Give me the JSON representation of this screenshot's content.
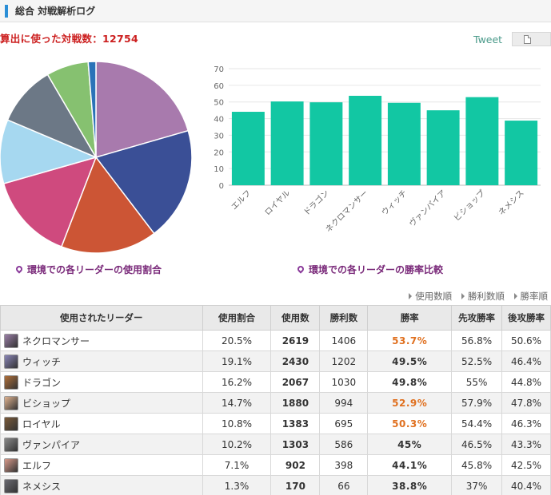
{
  "header": {
    "title": "総合 対戦解析ログ"
  },
  "summary": {
    "battle_count_text": "算出に使った対戦数：12754"
  },
  "share": {
    "tweet_label": "Tweet"
  },
  "pie": {
    "caption": "環境での各リーダーの使用割合",
    "slices": [
      {
        "name": "ネクロマンサー",
        "value": 20.5,
        "color": "#a87aad"
      },
      {
        "name": "ウィッチ",
        "value": 19.1,
        "color": "#3a4f96"
      },
      {
        "name": "ドラゴン",
        "value": 16.2,
        "color": "#cc5535"
      },
      {
        "name": "ビショップ",
        "value": 14.7,
        "color": "#cf4a7e"
      },
      {
        "name": "ロイヤル",
        "value": 10.8,
        "color": "#a6d8f0"
      },
      {
        "name": "ヴァンパイア",
        "value": 10.2,
        "color": "#6c7886"
      },
      {
        "name": "エルフ",
        "value": 7.1,
        "color": "#86c170"
      },
      {
        "name": "ネメシス",
        "value": 1.3,
        "color": "#2a73b8"
      }
    ]
  },
  "chart_data": {
    "type": "bar",
    "title": "環境での各リーダーの勝率比較",
    "categories": [
      "エルフ",
      "ロイヤル",
      "ドラゴン",
      "ネクロマンサー",
      "ウィッチ",
      "ヴァンパイア",
      "ビショップ",
      "ネメシス"
    ],
    "values": [
      44.1,
      50.3,
      49.8,
      53.7,
      49.5,
      45.0,
      52.9,
      38.8
    ],
    "yticks": [
      0,
      10,
      20,
      30,
      40,
      50,
      60,
      70
    ],
    "ylim": [
      0,
      70
    ],
    "grid": true,
    "bar_color": "#12c7a3"
  },
  "sort": {
    "by_uses": "使用数順",
    "by_wins": "勝利数順",
    "by_rate": "勝率順"
  },
  "table": {
    "headers": {
      "leader": "使用されたリーダー",
      "share": "使用割合",
      "uses": "使用数",
      "wins": "勝利数",
      "rate": "勝率",
      "first": "先攻勝率",
      "second": "後攻勝率"
    },
    "rows": [
      {
        "name": "ネクロマンサー",
        "share": "20.5%",
        "uses": "2619",
        "wins": "1406",
        "rate": "53.7%",
        "rate_high": true,
        "first": "56.8%",
        "second": "50.6%",
        "avatar_color": "#9b7fa8"
      },
      {
        "name": "ウィッチ",
        "share": "19.1%",
        "uses": "2430",
        "wins": "1202",
        "rate": "49.5%",
        "rate_high": false,
        "first": "52.5%",
        "second": "46.4%",
        "avatar_color": "#8a86b8"
      },
      {
        "name": "ドラゴン",
        "share": "16.2%",
        "uses": "2067",
        "wins": "1030",
        "rate": "49.8%",
        "rate_high": false,
        "first": "55%",
        "second": "44.8%",
        "avatar_color": "#b0703a"
      },
      {
        "name": "ビショップ",
        "share": "14.7%",
        "uses": "1880",
        "wins": "994",
        "rate": "52.9%",
        "rate_high": true,
        "first": "57.9%",
        "second": "47.8%",
        "avatar_color": "#e0b490"
      },
      {
        "name": "ロイヤル",
        "share": "10.8%",
        "uses": "1383",
        "wins": "695",
        "rate": "50.3%",
        "rate_high": true,
        "first": "54.4%",
        "second": "46.3%",
        "avatar_color": "#7a5a3a"
      },
      {
        "name": "ヴァンパイア",
        "share": "10.2%",
        "uses": "1303",
        "wins": "586",
        "rate": "45%",
        "rate_high": false,
        "first": "46.5%",
        "second": "43.3%",
        "avatar_color": "#8a8a8a"
      },
      {
        "name": "エルフ",
        "share": "7.1%",
        "uses": "902",
        "wins": "398",
        "rate": "44.1%",
        "rate_high": false,
        "first": "45.8%",
        "second": "42.5%",
        "avatar_color": "#d89a8a"
      },
      {
        "name": "ネメシス",
        "share": "1.3%",
        "uses": "170",
        "wins": "66",
        "rate": "38.8%",
        "rate_high": false,
        "first": "37%",
        "second": "40.4%",
        "avatar_color": "#6a6a72"
      }
    ]
  }
}
